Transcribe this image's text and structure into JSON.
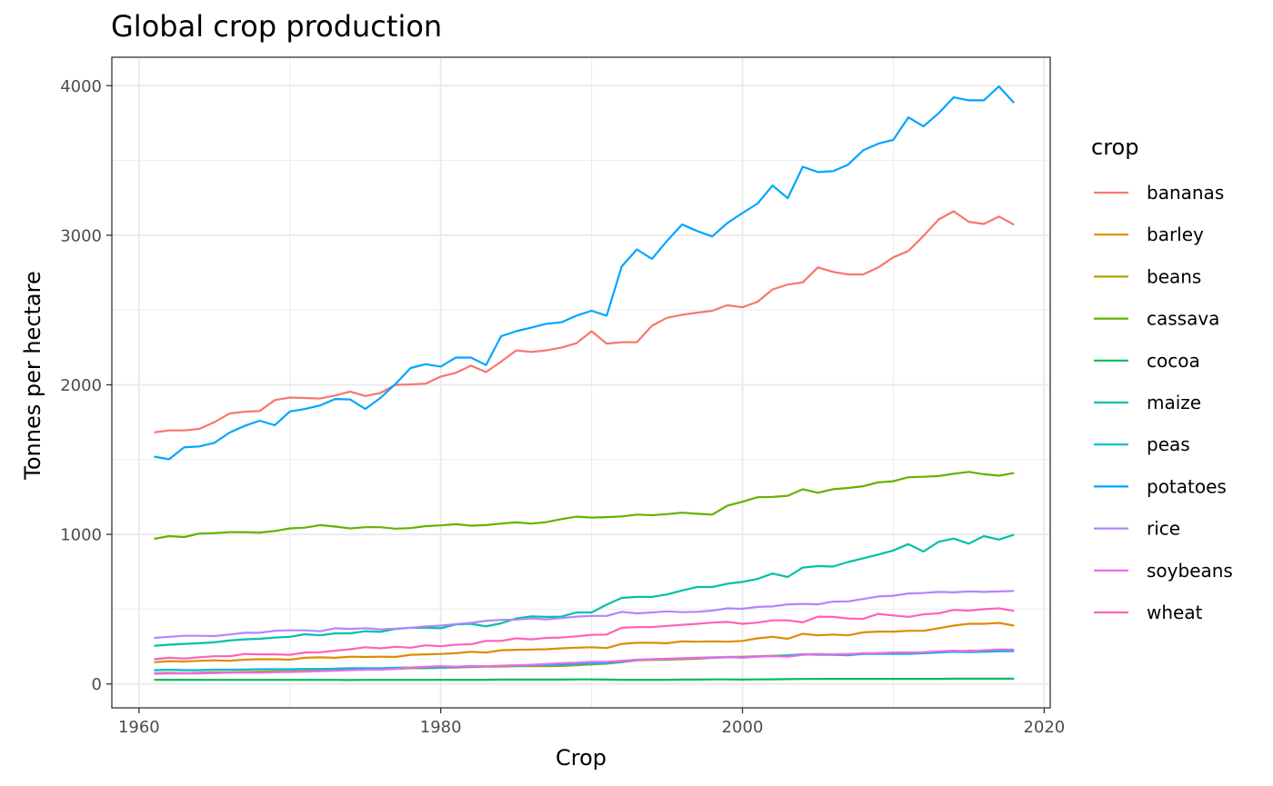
{
  "chart_data": {
    "type": "line",
    "title": "Global crop production",
    "xlabel": "Crop",
    "ylabel": "Tonnes per hectare",
    "xlim": [
      1958.2,
      2020.4
    ],
    "ylim": [
      -160,
      4190
    ],
    "x_ticks": [
      1960,
      1980,
      2000,
      2020
    ],
    "y_ticks": [
      0,
      1000,
      2000,
      3000,
      4000
    ],
    "x_tick_labels": [
      "1960",
      "1980",
      "2000",
      "2020"
    ],
    "y_tick_labels": [
      "0",
      "1000",
      "2000",
      "3000",
      "4000"
    ],
    "grid": true,
    "legend": {
      "title": "crop",
      "position": "right"
    },
    "x_start": 1961,
    "series": [
      {
        "name": "bananas",
        "color": "#F8766D",
        "values": [
          1682,
          1695,
          1695,
          1705,
          1750,
          1808,
          1820,
          1825,
          1898,
          1915,
          1912,
          1908,
          1928,
          1955,
          1925,
          1945,
          2000,
          2002,
          2008,
          2055,
          2080,
          2128,
          2085,
          2155,
          2230,
          2220,
          2230,
          2248,
          2278,
          2358,
          2275,
          2285,
          2285,
          2395,
          2448,
          2468,
          2482,
          2495,
          2532,
          2518,
          2555,
          2638,
          2670,
          2685,
          2785,
          2755,
          2738,
          2738,
          2785,
          2852,
          2895,
          2995,
          3105,
          3160,
          3090,
          3075,
          3125,
          3070
        ]
      },
      {
        "name": "barley",
        "color": "#DB8E00",
        "values": [
          145,
          152,
          150,
          155,
          158,
          155,
          162,
          165,
          165,
          162,
          175,
          178,
          175,
          182,
          180,
          182,
          180,
          195,
          198,
          200,
          205,
          215,
          210,
          225,
          228,
          230,
          232,
          238,
          242,
          245,
          240,
          268,
          275,
          275,
          272,
          285,
          282,
          285,
          282,
          288,
          305,
          315,
          302,
          335,
          325,
          330,
          325,
          345,
          350,
          350,
          355,
          355,
          372,
          390,
          402,
          402,
          408,
          390
        ]
      },
      {
        "name": "beans",
        "color": "#AEA200",
        "values": [
          72,
          75,
          72,
          75,
          78,
          78,
          80,
          82,
          85,
          85,
          88,
          90,
          92,
          95,
          98,
          100,
          100,
          105,
          105,
          108,
          110,
          112,
          115,
          115,
          118,
          118,
          118,
          120,
          125,
          130,
          135,
          145,
          158,
          160,
          162,
          165,
          168,
          175,
          180,
          182,
          185,
          188,
          192,
          198,
          200,
          198,
          200,
          200,
          205,
          205,
          205,
          208,
          215,
          218,
          222,
          222,
          225,
          222
        ]
      },
      {
        "name": "cassava",
        "color": "#64B200",
        "values": [
          970,
          988,
          982,
          1005,
          1008,
          1015,
          1015,
          1012,
          1022,
          1040,
          1045,
          1062,
          1052,
          1040,
          1048,
          1048,
          1038,
          1042,
          1055,
          1060,
          1068,
          1058,
          1062,
          1072,
          1080,
          1072,
          1082,
          1102,
          1118,
          1112,
          1115,
          1120,
          1132,
          1128,
          1135,
          1145,
          1138,
          1132,
          1192,
          1218,
          1248,
          1250,
          1258,
          1302,
          1278,
          1302,
          1310,
          1322,
          1348,
          1355,
          1382,
          1385,
          1390,
          1405,
          1418,
          1402,
          1392,
          1410
        ]
      },
      {
        "name": "cocoa",
        "color": "#00BD5C",
        "values": [
          28,
          28,
          28,
          27,
          27,
          27,
          27,
          27,
          27,
          27,
          27,
          27,
          27,
          26,
          27,
          27,
          27,
          27,
          27,
          28,
          28,
          28,
          28,
          29,
          29,
          29,
          29,
          29,
          30,
          30,
          29,
          28,
          28,
          28,
          28,
          29,
          29,
          30,
          30,
          29,
          30,
          31,
          32,
          33,
          33,
          34,
          34,
          34,
          34,
          34,
          34,
          34,
          34,
          35,
          35,
          35,
          35,
          35
        ]
      },
      {
        "name": "maize",
        "color": "#00C1A7",
        "values": [
          255,
          262,
          268,
          272,
          278,
          290,
          298,
          302,
          310,
          315,
          332,
          325,
          338,
          338,
          352,
          348,
          368,
          375,
          375,
          372,
          398,
          402,
          385,
          405,
          438,
          452,
          448,
          450,
          478,
          478,
          530,
          575,
          582,
          582,
          598,
          625,
          648,
          648,
          670,
          682,
          702,
          738,
          715,
          778,
          788,
          785,
          815,
          840,
          865,
          892,
          935,
          885,
          950,
          972,
          938,
          988,
          965,
          998
        ]
      },
      {
        "name": "peas",
        "color": "#00BADE",
        "values": [
          92,
          95,
          92,
          92,
          95,
          95,
          96,
          98,
          98,
          98,
          100,
          100,
          102,
          105,
          105,
          105,
          108,
          110,
          108,
          110,
          112,
          115,
          118,
          120,
          122,
          125,
          125,
          128,
          132,
          135,
          140,
          150,
          160,
          165,
          168,
          170,
          175,
          175,
          178,
          178,
          182,
          185,
          190,
          198,
          195,
          195,
          192,
          200,
          200,
          200,
          200,
          205,
          210,
          215,
          212,
          215,
          218,
          220
        ]
      },
      {
        "name": "potatoes",
        "color": "#00A6FF",
        "values": [
          1520,
          1502,
          1582,
          1588,
          1612,
          1680,
          1725,
          1760,
          1730,
          1822,
          1838,
          1862,
          1905,
          1902,
          1838,
          1912,
          2005,
          2112,
          2138,
          2122,
          2182,
          2182,
          2132,
          2325,
          2358,
          2382,
          2408,
          2418,
          2462,
          2495,
          2462,
          2792,
          2905,
          2842,
          2962,
          3072,
          3028,
          2992,
          3082,
          3148,
          3212,
          3332,
          3248,
          3458,
          3422,
          3428,
          3472,
          3568,
          3612,
          3638,
          3788,
          3728,
          3815,
          3922,
          3902,
          3902,
          3995,
          3885
        ]
      },
      {
        "name": "rice",
        "color": "#B385FF",
        "values": [
          308,
          315,
          322,
          322,
          320,
          330,
          342,
          342,
          355,
          358,
          358,
          352,
          372,
          368,
          372,
          365,
          370,
          375,
          385,
          390,
          400,
          408,
          422,
          428,
          430,
          438,
          432,
          440,
          450,
          455,
          455,
          482,
          472,
          478,
          485,
          480,
          482,
          490,
          505,
          502,
          515,
          518,
          532,
          535,
          532,
          550,
          552,
          568,
          585,
          590,
          605,
          608,
          615,
          612,
          618,
          615,
          618,
          622
        ]
      },
      {
        "name": "soybeans",
        "color": "#EF67EB",
        "values": [
          68,
          70,
          70,
          70,
          72,
          75,
          75,
          75,
          78,
          80,
          82,
          85,
          88,
          92,
          95,
          95,
          100,
          110,
          115,
          118,
          115,
          120,
          118,
          122,
          125,
          128,
          132,
          138,
          142,
          148,
          148,
          155,
          162,
          165,
          168,
          172,
          175,
          178,
          180,
          175,
          182,
          185,
          182,
          195,
          198,
          198,
          198,
          205,
          205,
          210,
          210,
          212,
          218,
          222,
          218,
          225,
          230,
          230
        ]
      },
      {
        "name": "wheat",
        "color": "#FF63B6",
        "values": [
          165,
          175,
          170,
          178,
          185,
          185,
          200,
          198,
          198,
          195,
          210,
          212,
          222,
          232,
          245,
          238,
          248,
          242,
          258,
          252,
          262,
          265,
          288,
          288,
          305,
          298,
          308,
          310,
          318,
          328,
          330,
          375,
          380,
          380,
          388,
          395,
          402,
          410,
          415,
          402,
          410,
          425,
          425,
          412,
          450,
          448,
          438,
          435,
          468,
          458,
          448,
          465,
          472,
          495,
          490,
          500,
          505,
          488
        ]
      }
    ]
  }
}
